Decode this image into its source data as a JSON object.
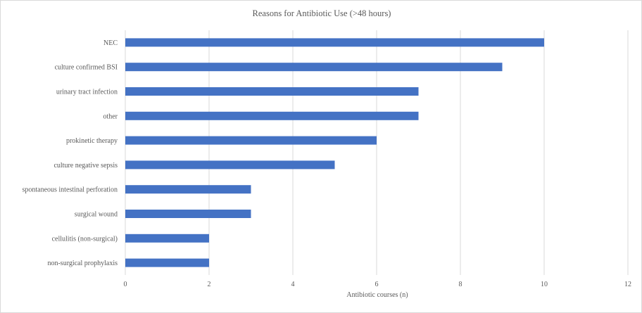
{
  "chart_data": {
    "type": "bar",
    "orientation": "horizontal",
    "title": "Reasons  for Antibiotic  Use (>48 hours)",
    "xlabel": "Antibiotic courses (n)",
    "ylabel": "",
    "xlim": [
      0,
      12
    ],
    "x_ticks": [
      0,
      2,
      4,
      6,
      8,
      10,
      12
    ],
    "grid": "vertical",
    "legend": "none",
    "bar_color": "#4472C4",
    "categories": [
      "NEC",
      "culture confirmed BSI",
      "urinary tract infection",
      "other",
      "prokinetic therapy",
      "culture negative sepsis",
      "spontaneous intestinal perforation",
      "surgical wound",
      "cellulitis (non-surgical)",
      "non-surgical prophylaxis"
    ],
    "values": [
      10,
      9,
      7,
      7,
      6,
      5,
      3,
      3,
      2,
      2
    ]
  }
}
